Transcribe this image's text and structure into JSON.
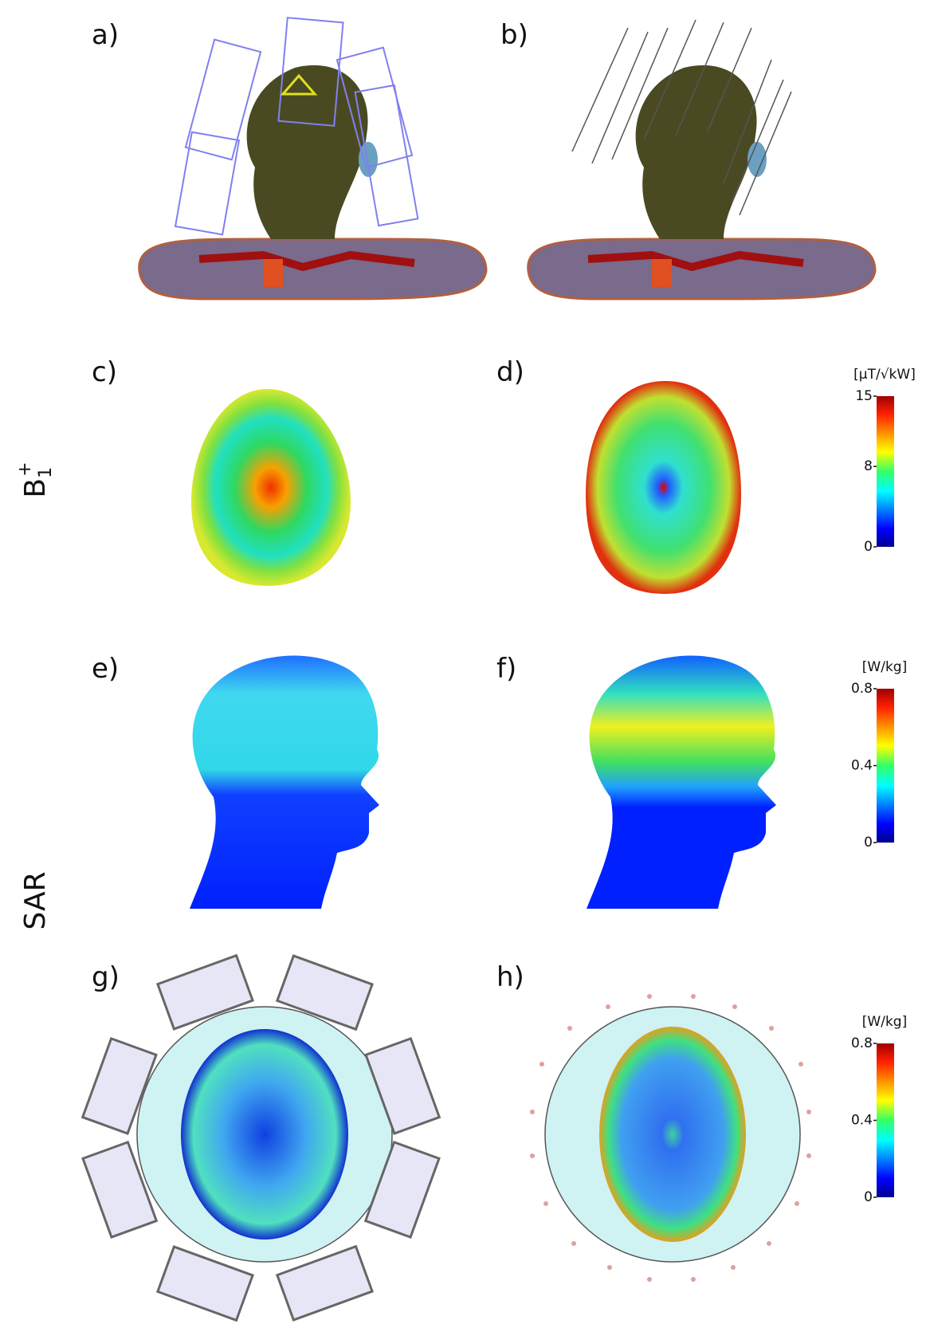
{
  "row_labels": {
    "b1": {
      "base": "B",
      "sub": "1",
      "sup": "+"
    },
    "sar": "SAR"
  },
  "panels": [
    {
      "label": "a)"
    },
    {
      "label": "b)"
    },
    {
      "label": "c)"
    },
    {
      "label": "d)"
    },
    {
      "label": "e)"
    },
    {
      "label": "f)"
    },
    {
      "label": "g)"
    },
    {
      "label": "h)"
    }
  ],
  "colorbars": [
    {
      "unit": "[µT/√kW]",
      "lim": [
        0,
        15
      ],
      "ticks": [
        0,
        8,
        15
      ]
    },
    {
      "unit": "[W/kg]",
      "lim": [
        0,
        0.8
      ],
      "ticks": [
        0,
        0.4,
        0.8
      ]
    },
    {
      "unit": "[W/kg]",
      "lim": [
        0,
        0.8
      ],
      "ticks": [
        0,
        0.4,
        0.8
      ]
    }
  ]
}
